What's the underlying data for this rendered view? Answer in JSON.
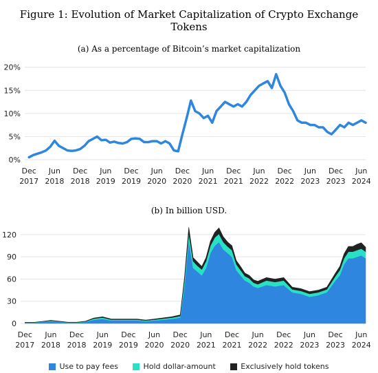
{
  "figure_title": "Figure 1: Evolution of Market Capitalization of Crypto Exchange Tokens",
  "colors": {
    "line": "#2f86df",
    "fees": "#2f86df",
    "hold_dollar": "#29e0c4",
    "hold_tokens": "#222222",
    "grid": "#e3e3e3"
  },
  "chart_data": [
    {
      "type": "line",
      "subtitle": "(a) As a percentage of Bitcoin’s market capitalization",
      "ylim": [
        0,
        21
      ],
      "yticks": [
        {
          "v": 0,
          "label": "0%"
        },
        {
          "v": 5,
          "label": "5%"
        },
        {
          "v": 10,
          "label": "10%"
        },
        {
          "v": 15,
          "label": "15%"
        },
        {
          "v": 20,
          "label": "20%"
        }
      ],
      "x_range": [
        "2017-11",
        "2024-07"
      ],
      "xticks": [
        {
          "t": "2017-12",
          "label": [
            "Dec",
            "2017"
          ]
        },
        {
          "t": "2018-06",
          "label": [
            "Jun",
            "2018"
          ]
        },
        {
          "t": "2018-12",
          "label": [
            "Dec",
            "2018"
          ]
        },
        {
          "t": "2019-06",
          "label": [
            "Jun",
            "2019"
          ]
        },
        {
          "t": "2019-12",
          "label": [
            "Dec",
            "2019"
          ]
        },
        {
          "t": "2020-06",
          "label": [
            "Jun",
            "2020"
          ]
        },
        {
          "t": "2020-12",
          "label": [
            "Dec",
            "2020"
          ]
        },
        {
          "t": "2021-06",
          "label": [
            "Jun",
            "2021"
          ]
        },
        {
          "t": "2021-12",
          "label": [
            "Dec",
            "2021"
          ]
        },
        {
          "t": "2022-06",
          "label": [
            "Jun",
            "2022"
          ]
        },
        {
          "t": "2022-12",
          "label": [
            "Dec",
            "2022"
          ]
        },
        {
          "t": "2023-06",
          "label": [
            "Jun",
            "2023"
          ]
        },
        {
          "t": "2023-12",
          "label": [
            "Dec",
            "2023"
          ]
        },
        {
          "t": "2024-06",
          "label": [
            "Jun",
            "2024"
          ]
        }
      ],
      "grid": "horizontal",
      "x": [
        "2017-12",
        "2018-01",
        "2018-02",
        "2018-03",
        "2018-04",
        "2018-05",
        "2018-06",
        "2018-07",
        "2018-08",
        "2018-09",
        "2018-10",
        "2018-11",
        "2018-12",
        "2019-01",
        "2019-02",
        "2019-03",
        "2019-04",
        "2019-05",
        "2019-06",
        "2019-07",
        "2019-08",
        "2019-09",
        "2019-10",
        "2019-11",
        "2019-12",
        "2020-01",
        "2020-02",
        "2020-03",
        "2020-04",
        "2020-05",
        "2020-06",
        "2020-07",
        "2020-08",
        "2020-09",
        "2020-10",
        "2020-11",
        "2020-12",
        "2021-01",
        "2021-02",
        "2021-03",
        "2021-04",
        "2021-05",
        "2021-06",
        "2021-07",
        "2021-08",
        "2021-09",
        "2021-10",
        "2021-11",
        "2021-12",
        "2022-01",
        "2022-02",
        "2022-03",
        "2022-04",
        "2022-05",
        "2022-06",
        "2022-07",
        "2022-08",
        "2022-09",
        "2022-10",
        "2022-11",
        "2022-12",
        "2023-01",
        "2023-02",
        "2023-03",
        "2023-04",
        "2023-05",
        "2023-06",
        "2023-07",
        "2023-08",
        "2023-09",
        "2023-10",
        "2023-11",
        "2023-12",
        "2024-01",
        "2024-02",
        "2024-03",
        "2024-04",
        "2024-05",
        "2024-06",
        "2024-07"
      ],
      "series": [
        {
          "values": [
            0.5,
            1.0,
            1.3,
            1.6,
            2.0,
            2.8,
            4.1,
            3.0,
            2.5,
            2.0,
            1.9,
            2.0,
            2.3,
            3.0,
            4.0,
            4.5,
            5.0,
            4.2,
            4.3,
            3.7,
            3.9,
            3.6,
            3.5,
            3.8,
            4.5,
            4.6,
            4.5,
            3.8,
            3.8,
            4.0,
            4.0,
            3.5,
            4.0,
            3.5,
            2.0,
            1.8,
            5.5,
            9.0,
            12.8,
            10.5,
            10.0,
            9.0,
            9.5,
            8.0,
            10.5,
            11.5,
            12.5,
            12.0,
            11.5,
            12.0,
            11.5,
            12.5,
            14.0,
            15.0,
            16.0,
            16.5,
            17.0,
            15.5,
            18.5,
            16.0,
            14.5,
            12.0,
            10.5,
            8.5,
            8.0,
            8.0,
            7.5,
            7.5,
            7.0,
            7.0,
            6.0,
            5.5,
            6.5,
            7.5,
            7.0,
            8.0,
            7.5,
            8.0,
            8.5,
            8.0
          ]
        }
      ]
    },
    {
      "type": "area",
      "stacked": true,
      "subtitle": "(b) In billion USD.",
      "ylim": [
        0,
        132
      ],
      "yticks": [
        {
          "v": 0,
          "label": "0"
        },
        {
          "v": 30,
          "label": "30"
        },
        {
          "v": 60,
          "label": "60"
        },
        {
          "v": 90,
          "label": "90"
        },
        {
          "v": 120,
          "label": "120"
        }
      ],
      "x_range": [
        "2017-11",
        "2024-07"
      ],
      "xticks": [
        {
          "t": "2017-12",
          "label": [
            "Dec",
            "2017"
          ]
        },
        {
          "t": "2018-06",
          "label": [
            "Jun",
            "2018"
          ]
        },
        {
          "t": "2018-12",
          "label": [
            "Dec",
            "2018"
          ]
        },
        {
          "t": "2019-06",
          "label": [
            "Jun",
            "2019"
          ]
        },
        {
          "t": "2019-12",
          "label": [
            "Dec",
            "2019"
          ]
        },
        {
          "t": "2020-06",
          "label": [
            "Jun",
            "2020"
          ]
        },
        {
          "t": "2020-12",
          "label": [
            "Dec",
            "2020"
          ]
        },
        {
          "t": "2021-06",
          "label": [
            "Jun",
            "2021"
          ]
        },
        {
          "t": "2021-12",
          "label": [
            "Dec",
            "2021"
          ]
        },
        {
          "t": "2022-06",
          "label": [
            "Jun",
            "2022"
          ]
        },
        {
          "t": "2022-12",
          "label": [
            "Dec",
            "2022"
          ]
        },
        {
          "t": "2023-06",
          "label": [
            "Jun",
            "2023"
          ]
        },
        {
          "t": "2023-12",
          "label": [
            "Dec",
            "2023"
          ]
        },
        {
          "t": "2024-06",
          "label": [
            "Jun",
            "2024"
          ]
        }
      ],
      "grid": "horizontal",
      "legend_position": "bottom",
      "x": [
        "2017-12",
        "2018-02",
        "2018-04",
        "2018-06",
        "2018-08",
        "2018-10",
        "2018-12",
        "2019-02",
        "2019-04",
        "2019-06",
        "2019-08",
        "2019-10",
        "2019-12",
        "2020-02",
        "2020-04",
        "2020-06",
        "2020-08",
        "2020-10",
        "2020-12",
        "2021-01",
        "2021-02",
        "2021-03",
        "2021-04",
        "2021-05",
        "2021-06",
        "2021-07",
        "2021-08",
        "2021-09",
        "2021-10",
        "2021-11",
        "2021-12",
        "2022-01",
        "2022-02",
        "2022-03",
        "2022-04",
        "2022-05",
        "2022-06",
        "2022-08",
        "2022-10",
        "2022-12",
        "2023-02",
        "2023-04",
        "2023-06",
        "2023-08",
        "2023-10",
        "2023-12",
        "2024-01",
        "2024-02",
        "2024-03",
        "2024-04",
        "2024-05",
        "2024-06",
        "2024-07"
      ],
      "series": [
        {
          "name": "Use to pay fees",
          "values": [
            1,
            1,
            2,
            3,
            2,
            1,
            1,
            2,
            5,
            6,
            4,
            4,
            4,
            4,
            3,
            4,
            5,
            6,
            8,
            50,
            112,
            75,
            70,
            65,
            75,
            95,
            105,
            110,
            100,
            95,
            90,
            72,
            65,
            58,
            55,
            50,
            48,
            52,
            50,
            52,
            42,
            40,
            36,
            38,
            42,
            58,
            65,
            80,
            88,
            88,
            90,
            92,
            88
          ]
        },
        {
          "name": "Hold dollar-amount",
          "values": [
            0.3,
            0.3,
            0.5,
            0.8,
            0.6,
            0.4,
            0.4,
            0.6,
            1.5,
            2,
            1.2,
            1.2,
            1.2,
            1.2,
            1,
            1.2,
            1.5,
            1.8,
            2,
            8,
            10,
            9,
            8,
            8,
            9,
            10,
            11,
            11,
            10,
            9,
            9,
            8,
            7,
            6,
            6,
            5,
            5,
            6,
            6,
            6,
            4,
            4,
            4,
            4,
            4,
            6,
            7,
            8,
            9,
            9,
            9,
            9,
            9
          ]
        },
        {
          "name": "Exclusively hold tokens",
          "values": [
            0.2,
            0.2,
            0.3,
            0.5,
            0.4,
            0.3,
            0.3,
            0.4,
            0.8,
            1,
            0.8,
            0.8,
            0.8,
            0.8,
            0.6,
            0.8,
            1,
            1.2,
            1.5,
            4,
            8,
            5,
            5,
            4,
            5,
            6,
            7,
            8,
            7,
            6,
            6,
            5,
            5,
            4,
            4,
            4,
            4,
            4,
            4,
            4,
            3,
            3,
            3,
            3,
            3,
            4,
            5,
            6,
            7,
            7,
            8,
            8,
            6
          ]
        }
      ]
    }
  ]
}
